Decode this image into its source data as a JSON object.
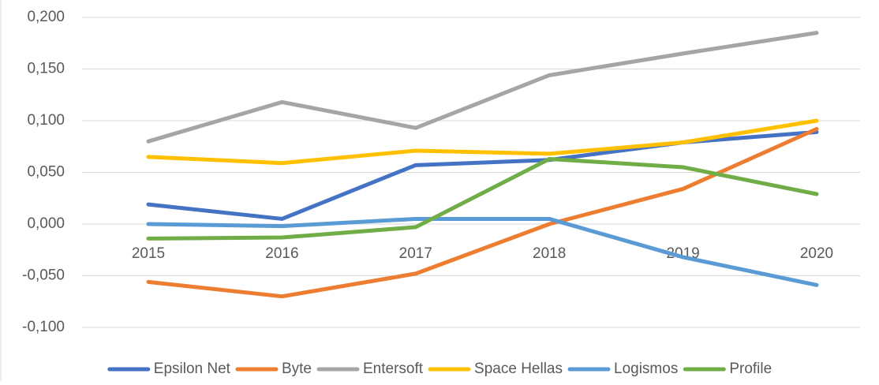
{
  "chart_data": {
    "type": "line",
    "categories": [
      "2015",
      "2016",
      "2017",
      "2018",
      "2019",
      "2020"
    ],
    "series": [
      {
        "name": "Epsilon Net",
        "color": "#4472c4",
        "values": [
          0.019,
          0.005,
          0.057,
          0.062,
          0.079,
          0.089
        ]
      },
      {
        "name": "Byte",
        "color": "#ed7d31",
        "values": [
          -0.056,
          -0.07,
          -0.048,
          0.0,
          0.034,
          0.092
        ]
      },
      {
        "name": "Entersoft",
        "color": "#a5a5a5",
        "values": [
          0.08,
          0.118,
          0.093,
          0.144,
          0.165,
          0.185
        ]
      },
      {
        "name": "Space Hellas",
        "color": "#ffc000",
        "values": [
          0.065,
          0.059,
          0.071,
          0.068,
          0.079,
          0.1
        ]
      },
      {
        "name": "Logismos",
        "color": "#5b9bd5",
        "values": [
          0.0,
          -0.002,
          0.005,
          0.005,
          -0.032,
          -0.059
        ]
      },
      {
        "name": "Profile",
        "color": "#70ad47",
        "values": [
          -0.014,
          -0.013,
          -0.003,
          0.063,
          0.055,
          0.029
        ]
      }
    ],
    "ylim": [
      -0.1,
      0.2
    ],
    "yticks": [
      {
        "value": -0.1,
        "label": "-0,100"
      },
      {
        "value": -0.05,
        "label": "-0,050"
      },
      {
        "value": 0,
        "label": "0,000"
      },
      {
        "value": 0.05,
        "label": "0,050"
      },
      {
        "value": 0.1,
        "label": "0,100"
      },
      {
        "value": 0.15,
        "label": "0,150"
      },
      {
        "value": 0.2,
        "label": "0,200"
      }
    ],
    "grid": true,
    "legend": "bottom"
  }
}
